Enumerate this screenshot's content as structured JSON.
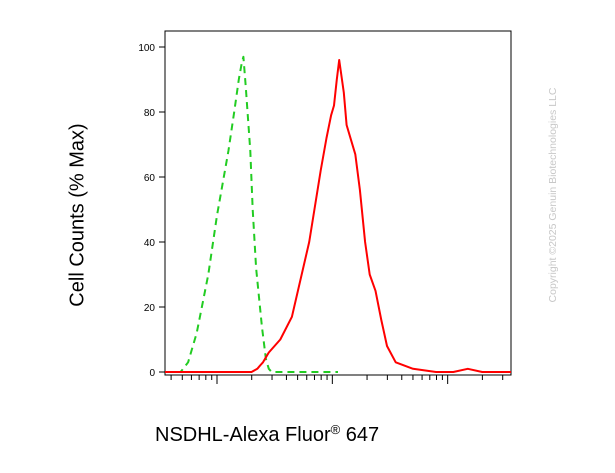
{
  "chart_data": {
    "type": "line",
    "xlabel": "NSDHL-Alexa Fluor",
    "xlabel_superscript": "®",
    "xlabel_suffix": " 647",
    "ylabel": "Cell Counts (% Max)",
    "ylim": [
      0,
      100
    ],
    "xscale": "log",
    "x_decades": 3,
    "y_ticks": [
      0,
      20,
      40,
      60,
      80,
      100
    ],
    "y_tick_labels": [
      "0",
      "20",
      "40",
      "60",
      "80",
      "100"
    ],
    "grid": false,
    "series": [
      {
        "color": "#22cc22",
        "style": "dashed",
        "x": [
          0.0,
          0.05,
          0.2,
          0.27,
          0.4,
          0.55,
          0.75,
          0.9,
          1.1,
          1.2,
          1.28,
          1.33,
          1.36,
          1.4,
          1.48,
          1.52,
          1.58,
          1.68,
          1.75,
          1.8,
          1.85,
          2.0,
          2.5,
          3.0
        ],
        "values": [
          0,
          0,
          0,
          0,
          3,
          12,
          30,
          48,
          68,
          80,
          90,
          95,
          97,
          88,
          68,
          50,
          32,
          14,
          4,
          1,
          0,
          0,
          0,
          0
        ]
      },
      {
        "color": "#ff0000",
        "style": "solid",
        "x": [
          0.0,
          0.5,
          1.0,
          1.2,
          1.35,
          1.5,
          1.6,
          1.65,
          1.7,
          1.8,
          2.0,
          2.2,
          2.5,
          2.7,
          2.8,
          2.88,
          2.93,
          2.98,
          3.02,
          3.1,
          3.15,
          3.2,
          3.3,
          3.38,
          3.47,
          3.55,
          3.65,
          3.75,
          3.85,
          4.0,
          4.3,
          4.7,
          5.0,
          5.25,
          5.5,
          6.0
        ],
        "values": [
          0,
          0,
          0,
          0,
          0,
          0,
          1,
          2,
          3,
          6,
          10,
          17,
          40,
          62,
          72,
          79,
          82,
          90,
          96,
          86,
          76,
          73,
          67,
          56,
          40,
          30,
          25,
          16,
          8,
          3,
          1,
          0,
          0,
          1,
          0,
          0
        ]
      }
    ]
  },
  "watermark": "Copyright ©2025 Genuin Biotechnologies LLC"
}
